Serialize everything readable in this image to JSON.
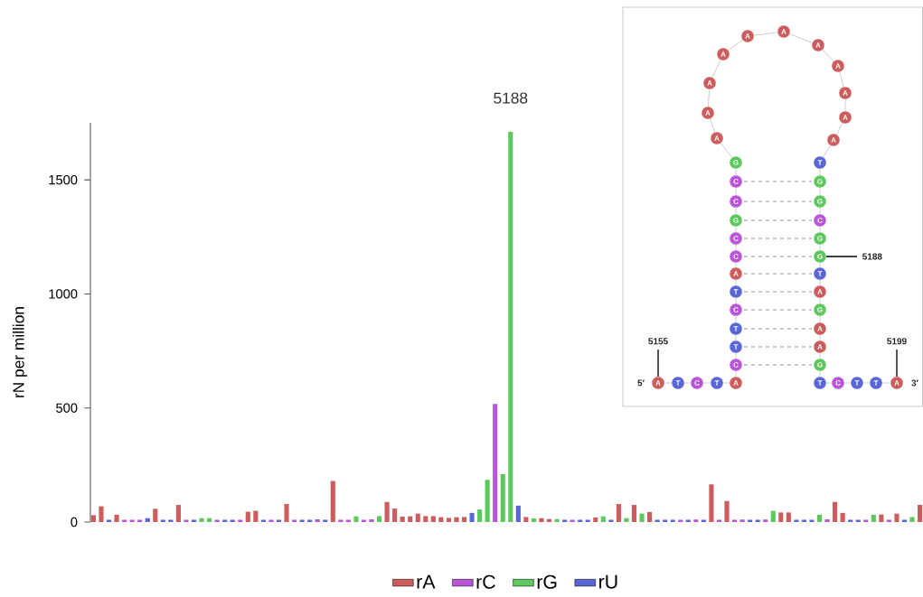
{
  "chart_data": {
    "type": "bar",
    "ylabel": "rN per million",
    "ylim": [
      0,
      1750
    ],
    "yticks": [
      0,
      500,
      1000,
      1500
    ],
    "legend": "bottom",
    "grid": false,
    "stacked": true,
    "categories": [
      null,
      null,
      null,
      null,
      null,
      null,
      null,
      null,
      null,
      null,
      null,
      null,
      null,
      null,
      null,
      null,
      null,
      null,
      null,
      null,
      null,
      null,
      null,
      null,
      null,
      null,
      null,
      null,
      null,
      null,
      null,
      null,
      null,
      null,
      null,
      null,
      null,
      null,
      null,
      null,
      null,
      null,
      null,
      null,
      null,
      null,
      null,
      null,
      null,
      null,
      null,
      null,
      null,
      null,
      null,
      null,
      null,
      null,
      null,
      null,
      null,
      null,
      null,
      null,
      null,
      null,
      null,
      null,
      null,
      null,
      null,
      null,
      null,
      null,
      null,
      null,
      null,
      null,
      null,
      null,
      null,
      null,
      null,
      null,
      null,
      null,
      null,
      null,
      null,
      null,
      null,
      null,
      null,
      null,
      null,
      null,
      null,
      null,
      null,
      null,
      null,
      null,
      null,
      null,
      null,
      null,
      null,
      null
    ],
    "series": [
      {
        "name": "rA",
        "color": "#cd5c5c",
        "values": [
          30,
          69,
          null,
          32,
          null,
          null,
          null,
          null,
          58,
          null,
          null,
          75,
          null,
          null,
          null,
          null,
          null,
          null,
          null,
          null,
          45,
          49,
          null,
          null,
          null,
          79,
          null,
          null,
          null,
          null,
          null,
          180,
          null,
          null,
          null,
          null,
          null,
          null,
          88,
          59,
          24,
          25,
          37,
          26,
          26,
          21,
          18,
          21,
          22,
          null,
          null,
          null,
          null,
          null,
          null,
          null,
          22,
          null,
          17,
          13,
          null,
          null,
          null,
          null,
          null,
          20,
          null,
          null,
          79,
          null,
          75,
          null,
          44,
          null,
          null,
          null,
          null,
          null,
          null,
          null,
          165,
          null,
          92,
          null,
          null,
          null,
          null,
          null,
          null,
          42,
          42,
          null,
          null,
          null,
          null,
          null,
          88,
          40,
          null,
          null,
          null,
          null,
          33,
          null,
          37,
          null,
          null,
          75
        ]
      },
      {
        "name": "rC",
        "color": "#b956d8",
        "values": [
          null,
          null,
          null,
          null,
          10,
          10,
          10,
          null,
          null,
          null,
          null,
          null,
          10,
          null,
          null,
          null,
          10,
          null,
          null,
          10,
          null,
          null,
          null,
          10,
          null,
          null,
          10,
          null,
          null,
          12,
          null,
          null,
          10,
          10,
          null,
          10,
          12,
          null,
          null,
          null,
          null,
          null,
          null,
          null,
          null,
          null,
          null,
          null,
          null,
          null,
          null,
          null,
          518,
          null,
          null,
          null,
          null,
          null,
          null,
          null,
          null,
          null,
          10,
          null,
          null,
          null,
          null,
          null,
          null,
          null,
          null,
          null,
          null,
          null,
          null,
          null,
          10,
          null,
          11,
          null,
          null,
          10,
          null,
          10,
          11,
          null,
          null,
          11,
          null,
          null,
          null,
          null,
          null,
          null,
          null,
          12,
          null,
          null,
          null,
          null,
          10,
          null,
          null,
          10,
          null,
          null,
          null,
          null
        ]
      },
      {
        "name": "rG",
        "color": "#5dc85d",
        "values": [
          null,
          null,
          null,
          null,
          null,
          null,
          null,
          null,
          null,
          null,
          null,
          null,
          null,
          null,
          17,
          17,
          null,
          null,
          null,
          null,
          null,
          null,
          null,
          null,
          null,
          null,
          null,
          null,
          null,
          null,
          null,
          null,
          null,
          null,
          25,
          null,
          null,
          26,
          null,
          null,
          null,
          null,
          null,
          null,
          null,
          null,
          null,
          null,
          null,
          null,
          55,
          185,
          null,
          210,
          1710,
          null,
          null,
          16,
          null,
          null,
          13,
          null,
          null,
          null,
          null,
          null,
          25,
          null,
          null,
          17,
          null,
          37,
          null,
          null,
          null,
          null,
          null,
          null,
          null,
          null,
          null,
          null,
          null,
          null,
          null,
          null,
          null,
          null,
          49,
          null,
          null,
          null,
          null,
          null,
          32,
          null,
          null,
          null,
          null,
          null,
          null,
          32,
          null,
          null,
          null,
          null,
          22,
          null
        ]
      },
      {
        "name": "rU",
        "color": "#5b66d6",
        "values": [
          null,
          null,
          10,
          null,
          null,
          null,
          null,
          17,
          null,
          10,
          10,
          null,
          null,
          10,
          null,
          null,
          null,
          10,
          10,
          null,
          null,
          null,
          10,
          null,
          10,
          null,
          null,
          10,
          10,
          null,
          10,
          null,
          null,
          null,
          null,
          null,
          null,
          null,
          null,
          null,
          null,
          null,
          null,
          null,
          null,
          null,
          null,
          null,
          null,
          40,
          null,
          null,
          null,
          null,
          null,
          72,
          null,
          null,
          null,
          null,
          null,
          10,
          null,
          10,
          10,
          null,
          null,
          10,
          null,
          null,
          null,
          null,
          null,
          10,
          10,
          10,
          null,
          10,
          null,
          10,
          null,
          null,
          null,
          null,
          null,
          10,
          10,
          null,
          null,
          null,
          null,
          10,
          10,
          10,
          null,
          null,
          null,
          null,
          10,
          10,
          null,
          null,
          null,
          null,
          null,
          10,
          null,
          null
        ]
      }
    ],
    "annotations": [
      {
        "text": "5188",
        "y": 1710
      },
      "5′",
      "3′",
      "5155",
      "5188",
      "5199",
      "A",
      "T",
      "C",
      "T",
      "A",
      "C",
      "T",
      "T",
      "C",
      "T",
      "A",
      "C",
      "C",
      "G",
      "C",
      "C",
      "G",
      "A",
      "A",
      "A",
      "A",
      "A",
      "A",
      "A",
      "A",
      "A",
      "A",
      "A",
      "T",
      "G",
      "G",
      "C",
      "G",
      "G",
      "T",
      "A",
      "G",
      "A",
      "A",
      "G",
      "T",
      "C",
      "T",
      "T",
      "A"
    ]
  }
}
